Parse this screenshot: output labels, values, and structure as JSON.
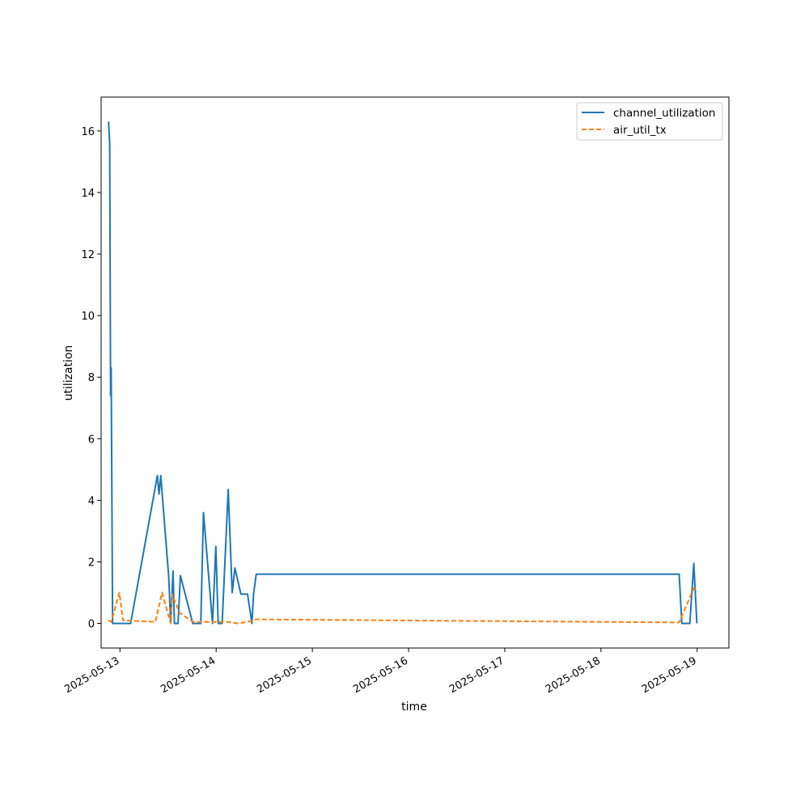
{
  "chart_data": {
    "type": "line",
    "title": "",
    "xlabel": "time",
    "ylabel": "utilization",
    "xlim": [
      "2025-05-12 19:18",
      "2025-05-19 07:55"
    ],
    "ylim": [
      -0.8,
      17.1
    ],
    "x_tick_labels": [
      "2025-05-13",
      "2025-05-14",
      "2025-05-15",
      "2025-05-16",
      "2025-05-17",
      "2025-05-18",
      "2025-05-19"
    ],
    "y_ticks": [
      0,
      2,
      4,
      6,
      8,
      10,
      12,
      14,
      16
    ],
    "grid": false,
    "legend_position": "top-right",
    "series": [
      {
        "name": "channel_utilization",
        "color": "#1f77b4",
        "style": "solid",
        "points": [
          [
            "2025-05-12 21:10",
            16.3
          ],
          [
            "2025-05-12 21:26",
            15.6
          ],
          [
            "2025-05-12 21:40",
            7.4
          ],
          [
            "2025-05-12 21:48",
            8.3
          ],
          [
            "2025-05-12 22:10",
            0.0
          ],
          [
            "2025-05-13 02:40",
            0.0
          ],
          [
            "2025-05-13 09:20",
            4.8
          ],
          [
            "2025-05-13 09:45",
            4.2
          ],
          [
            "2025-05-13 10:10",
            4.8
          ],
          [
            "2025-05-13 12:10",
            1.5
          ],
          [
            "2025-05-13 12:40",
            0.0
          ],
          [
            "2025-05-13 13:15",
            1.7
          ],
          [
            "2025-05-13 13:35",
            0.0
          ],
          [
            "2025-05-13 14:30",
            0.0
          ],
          [
            "2025-05-13 15:05",
            1.55
          ],
          [
            "2025-05-13 18:10",
            0.0
          ],
          [
            "2025-05-13 20:10",
            0.0
          ],
          [
            "2025-05-13 20:50",
            3.6
          ],
          [
            "2025-05-13 23:05",
            0.0
          ],
          [
            "2025-05-13 23:55",
            2.5
          ],
          [
            "2025-05-14 00:30",
            0.0
          ],
          [
            "2025-05-14 01:30",
            0.0
          ],
          [
            "2025-05-14 03:00",
            4.35
          ],
          [
            "2025-05-14 04:00",
            1.0
          ],
          [
            "2025-05-14 04:40",
            1.8
          ],
          [
            "2025-05-14 06:10",
            0.95
          ],
          [
            "2025-05-14 07:50",
            0.95
          ],
          [
            "2025-05-14 08:55",
            0.0
          ],
          [
            "2025-05-14 09:20",
            0.95
          ],
          [
            "2025-05-14 10:00",
            1.6
          ],
          [
            "2025-05-18 19:30",
            1.6
          ],
          [
            "2025-05-18 20:10",
            0.0
          ],
          [
            "2025-05-18 22:10",
            0.0
          ],
          [
            "2025-05-18 23:10",
            1.95
          ],
          [
            "2025-05-18 23:55",
            0.0
          ]
        ]
      },
      {
        "name": "air_util_tx",
        "color": "#ff7f0e",
        "style": "dashed",
        "points": [
          [
            "2025-05-12 21:10",
            0.1
          ],
          [
            "2025-05-12 21:50",
            0.05
          ],
          [
            "2025-05-12 23:50",
            1.0
          ],
          [
            "2025-05-13 00:45",
            0.1
          ],
          [
            "2025-05-13 08:50",
            0.05
          ],
          [
            "2025-05-13 10:30",
            1.0
          ],
          [
            "2025-05-13 12:40",
            0.0
          ],
          [
            "2025-05-13 13:00",
            0.95
          ],
          [
            "2025-05-13 14:50",
            0.35
          ],
          [
            "2025-05-13 18:10",
            0.05
          ],
          [
            "2025-05-13 20:50",
            0.05
          ],
          [
            "2025-05-13 23:50",
            0.05
          ],
          [
            "2025-05-14 03:00",
            0.05
          ],
          [
            "2025-05-14 05:20",
            0.0
          ],
          [
            "2025-05-14 07:50",
            0.05
          ],
          [
            "2025-05-14 10:00",
            0.13
          ],
          [
            "2025-05-18 19:30",
            0.03
          ],
          [
            "2025-05-18 23:10",
            1.15
          ],
          [
            "2025-05-18 23:55",
            1.05
          ]
        ]
      }
    ]
  }
}
